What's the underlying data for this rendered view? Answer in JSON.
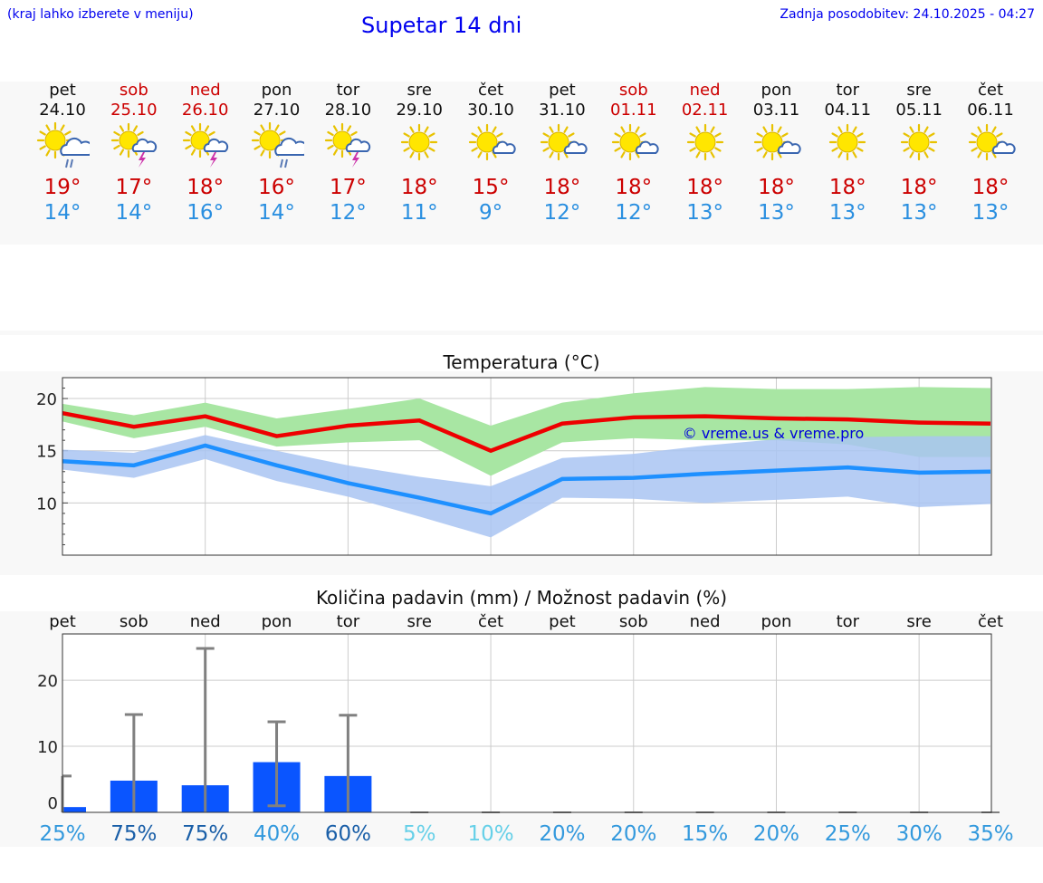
{
  "header": {
    "hint": "(kraj lahko izberete v meniju)",
    "title": "Supetar 14 dni",
    "updated": "Zadnja posodobitev: 24.10.2025 - 04:27"
  },
  "days": [
    {
      "name": "pet",
      "date": "24.10",
      "weekend": false,
      "icon": "sun-cloud-rain-icon",
      "tmax": "19°",
      "tmin": "14°"
    },
    {
      "name": "sob",
      "date": "25.10",
      "weekend": true,
      "icon": "sun-cloud-storm-icon",
      "tmax": "17°",
      "tmin": "14°"
    },
    {
      "name": "ned",
      "date": "26.10",
      "weekend": true,
      "icon": "sun-cloud-storm-icon",
      "tmax": "18°",
      "tmin": "16°"
    },
    {
      "name": "pon",
      "date": "27.10",
      "weekend": false,
      "icon": "sun-cloud-rain-icon",
      "tmax": "16°",
      "tmin": "14°"
    },
    {
      "name": "tor",
      "date": "28.10",
      "weekend": false,
      "icon": "sun-cloud-storm-icon",
      "tmax": "17°",
      "tmin": "12°"
    },
    {
      "name": "sre",
      "date": "29.10",
      "weekend": false,
      "icon": "sun-icon",
      "tmax": "18°",
      "tmin": "11°"
    },
    {
      "name": "čet",
      "date": "30.10",
      "weekend": false,
      "icon": "sun-small-cloud-icon",
      "tmax": "15°",
      "tmin": "9°"
    },
    {
      "name": "pet",
      "date": "31.10",
      "weekend": false,
      "icon": "sun-small-cloud-icon",
      "tmax": "18°",
      "tmin": "12°"
    },
    {
      "name": "sob",
      "date": "01.11",
      "weekend": true,
      "icon": "sun-small-cloud-icon",
      "tmax": "18°",
      "tmin": "12°"
    },
    {
      "name": "ned",
      "date": "02.11",
      "weekend": true,
      "icon": "sun-icon",
      "tmax": "18°",
      "tmin": "13°"
    },
    {
      "name": "pon",
      "date": "03.11",
      "weekend": false,
      "icon": "sun-small-cloud-icon",
      "tmax": "18°",
      "tmin": "13°"
    },
    {
      "name": "tor",
      "date": "04.11",
      "weekend": false,
      "icon": "sun-icon",
      "tmax": "18°",
      "tmin": "13°"
    },
    {
      "name": "sre",
      "date": "05.11",
      "weekend": false,
      "icon": "sun-icon",
      "tmax": "18°",
      "tmin": "13°"
    },
    {
      "name": "čet",
      "date": "06.11",
      "weekend": false,
      "icon": "sun-small-cloud-icon",
      "tmax": "18°",
      "tmin": "13°"
    }
  ],
  "colors": {
    "max_line": "#ee0000",
    "max_band": "#a8e6a3",
    "min_line": "#1e90ff",
    "min_band": "#a9c4f2",
    "bar": "#0a55ff",
    "error": "#808080",
    "weekend": "#cc0000"
  },
  "chart_data": [
    {
      "type": "line",
      "title": "Temperatura (°C)",
      "watermark": "© vreme.us & vreme.pro",
      "ylim": [
        5,
        22
      ],
      "yticks": [
        10,
        15,
        20
      ],
      "series": [
        {
          "name": "max",
          "values": [
            18.6,
            17.3,
            18.3,
            16.4,
            17.4,
            17.9,
            15.0,
            17.6,
            18.2,
            18.3,
            18.1,
            18.0,
            17.7,
            17.6
          ],
          "band_low": [
            17.8,
            16.2,
            17.3,
            15.4,
            15.8,
            16.0,
            12.6,
            15.8,
            16.2,
            16.0,
            16.0,
            15.6,
            14.4,
            14.4
          ],
          "band_high": [
            19.5,
            18.4,
            19.6,
            18.1,
            19.0,
            20.0,
            17.4,
            19.6,
            20.5,
            21.1,
            20.9,
            20.9,
            21.1,
            21.0
          ]
        },
        {
          "name": "min",
          "values": [
            14.0,
            13.6,
            15.5,
            13.6,
            11.9,
            10.5,
            9.0,
            12.3,
            12.4,
            12.8,
            13.1,
            13.4,
            12.9,
            13.0
          ],
          "band_low": [
            13.2,
            12.4,
            14.2,
            12.1,
            10.6,
            8.7,
            6.7,
            10.5,
            10.4,
            10.0,
            10.3,
            10.6,
            9.6,
            9.9
          ],
          "band_high": [
            15.1,
            14.8,
            16.5,
            15.0,
            13.6,
            12.5,
            11.6,
            14.3,
            14.7,
            15.5,
            16.1,
            16.3,
            16.4,
            16.4
          ]
        }
      ]
    },
    {
      "type": "bar",
      "title": "Količina padavin (mm) / Možnost padavin (%)",
      "ylim": [
        0,
        27
      ],
      "yticks": [
        0,
        10,
        20
      ],
      "categories": [
        "pet",
        "sob",
        "ned",
        "pon",
        "tor",
        "sre",
        "čet",
        "pet",
        "sob",
        "ned",
        "pon",
        "tor",
        "sre",
        "čet"
      ],
      "values": [
        0.8,
        4.8,
        4.1,
        7.6,
        5.5,
        0,
        0,
        0,
        0,
        0,
        0,
        0,
        0,
        0
      ],
      "error_low": [
        0,
        0,
        0,
        1.0,
        0,
        0,
        0,
        0,
        0,
        0,
        0,
        0,
        0,
        0
      ],
      "error_high": [
        5.5,
        14.8,
        24.8,
        13.7,
        14.7,
        0,
        0,
        0,
        0,
        0,
        0,
        0,
        0,
        0
      ],
      "probability": [
        "25%",
        "75%",
        "75%",
        "40%",
        "60%",
        "5%",
        "10%",
        "20%",
        "20%",
        "15%",
        "20%",
        "25%",
        "30%",
        "35%"
      ],
      "probability_colors": [
        "#3399dd",
        "#1a5fa8",
        "#1a5fa8",
        "#3399dd",
        "#1a5fa8",
        "#66d0e8",
        "#66d0e8",
        "#3399dd",
        "#3399dd",
        "#3399dd",
        "#3399dd",
        "#3399dd",
        "#3399dd",
        "#3399dd"
      ]
    }
  ]
}
